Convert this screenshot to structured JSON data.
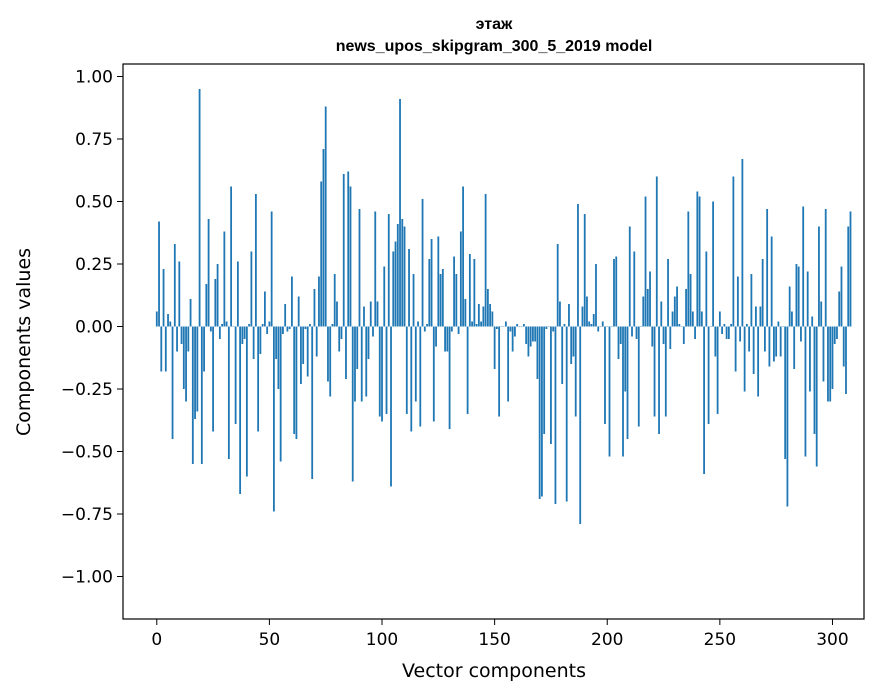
{
  "chart_data": {
    "type": "bar",
    "title": "этаж",
    "subtitle": "news_upos_skipgram_300_5_2019 model",
    "xlabel": "Vector components",
    "ylabel": "Components values",
    "xlim": [
      -15,
      314
    ],
    "ylim": [
      -1.17,
      1.05
    ],
    "x_ticks": [
      0,
      50,
      100,
      150,
      200,
      250,
      300
    ],
    "x_tick_labels": [
      "0",
      "50",
      "100",
      "150",
      "200",
      "250",
      "300"
    ],
    "y_ticks": [
      -1.0,
      -0.75,
      -0.5,
      -0.25,
      0.0,
      0.25,
      0.5,
      0.75,
      1.0
    ],
    "y_tick_labels": [
      "−1.00",
      "−0.75",
      "−0.50",
      "−0.25",
      "0.00",
      "0.25",
      "0.50",
      "0.75",
      "1.00"
    ],
    "bar_color": "#1f77b4",
    "values": [
      0.06,
      0.42,
      -0.18,
      0.23,
      -0.18,
      0.05,
      0.02,
      -0.45,
      0.33,
      -0.1,
      0.26,
      -0.07,
      -0.25,
      -0.3,
      -0.1,
      0.11,
      -0.55,
      -0.37,
      -0.34,
      0.95,
      -0.55,
      -0.18,
      0.17,
      0.43,
      -0.02,
      -0.42,
      0.19,
      0.25,
      -0.05,
      0.01,
      0.38,
      0.02,
      -0.53,
      0.56,
      0.0,
      -0.39,
      0.26,
      -0.67,
      -0.07,
      -0.05,
      -0.6,
      0.01,
      0.3,
      -0.13,
      0.53,
      -0.42,
      -0.11,
      0.01,
      0.14,
      -0.03,
      0.02,
      0.46,
      -0.74,
      -0.13,
      -0.25,
      -0.54,
      -0.03,
      0.09,
      -0.02,
      -0.01,
      0.2,
      -0.43,
      -0.45,
      0.12,
      -0.23,
      -0.15,
      -0.01,
      -0.2,
      0.01,
      -0.61,
      0.15,
      -0.12,
      0.2,
      0.58,
      0.71,
      0.88,
      -0.22,
      -0.28,
      0.01,
      0.21,
      0.1,
      -0.1,
      -0.05,
      0.61,
      -0.21,
      0.62,
      0.56,
      -0.62,
      -0.3,
      -0.17,
      0.47,
      -0.3,
      0.08,
      -0.28,
      -0.13,
      0.1,
      -0.04,
      0.46,
      0.1,
      -0.36,
      -0.38,
      0.24,
      -0.35,
      0.45,
      -0.64,
      0.3,
      0.34,
      0.41,
      0.91,
      0.43,
      0.4,
      -0.35,
      0.31,
      -0.42,
      0.21,
      -0.3,
      0.02,
      -0.4,
      0.51,
      -0.02,
      0.01,
      0.27,
      0.35,
      -0.38,
      -0.08,
      0.36,
      0.21,
      0.23,
      -0.1,
      -0.1,
      -0.41,
      -0.02,
      0.28,
      0.21,
      -0.03,
      0.38,
      0.56,
      0.11,
      -0.35,
      0.29,
      0.02,
      0.27,
      0.01,
      0.09,
      0.02,
      0.08,
      0.53,
      0.15,
      0.09,
      0.06,
      -0.17,
      -0.01,
      -0.36,
      0.0,
      0.0,
      0.02,
      -0.3,
      -0.02,
      -0.1,
      -0.04,
      0.01,
      0.0,
      0.0,
      0.01,
      -0.07,
      -0.12,
      -0.08,
      -0.06,
      -0.06,
      -0.21,
      -0.69,
      -0.68,
      -0.43,
      -0.01,
      0.0,
      -0.47,
      -0.02,
      -0.71,
      0.33,
      0.1,
      -0.23,
      0.01,
      -0.7,
      0.09,
      -0.15,
      -0.12,
      -0.36,
      0.49,
      -0.79,
      0.08,
      0.45,
      0.12,
      0.02,
      0.01,
      0.05,
      0.25,
      -0.02,
      0.0,
      0.02,
      -0.39,
      0.0,
      -0.52,
      0.0,
      0.27,
      0.28,
      -0.13,
      -0.07,
      -0.52,
      -0.26,
      -0.45,
      0.4,
      -0.04,
      0.3,
      -0.05,
      -0.4,
      0.0,
      0.12,
      0.52,
      0.15,
      0.22,
      -0.08,
      -0.36,
      0.6,
      -0.43,
      0.1,
      -0.07,
      -0.36,
      0.27,
      -0.09,
      0.06,
      0.12,
      0.16,
      0.01,
      0.0,
      -0.07,
      0.15,
      0.46,
      0.21,
      0.06,
      -0.05,
      0.54,
      0.52,
      0.06,
      -0.59,
      0.3,
      -0.39,
      0.0,
      0.5,
      -0.12,
      -0.35,
      0.06,
      -0.03,
      0.01,
      -0.05,
      -0.05,
      0.01,
      0.6,
      -0.18,
      0.2,
      -0.06,
      0.67,
      -0.26,
      0.01,
      -0.1,
      0.21,
      -0.19,
      0.08,
      -0.28,
      0.08,
      0.27,
      -0.1,
      0.47,
      -0.16,
      0.36,
      -0.14,
      -0.12,
      0.02,
      -0.12,
      0.0,
      -0.53,
      -0.72,
      0.16,
      0.06,
      -0.17,
      0.25,
      0.24,
      -0.06,
      0.48,
      -0.52,
      0.22,
      -0.26,
      0.04,
      -0.43,
      -0.56,
      0.4,
      0.1,
      -0.22,
      0.47,
      -0.3,
      -0.3,
      -0.25,
      -0.07,
      -0.05,
      0.14,
      0.24,
      -0.16,
      -0.27,
      0.4,
      0.46
    ]
  }
}
